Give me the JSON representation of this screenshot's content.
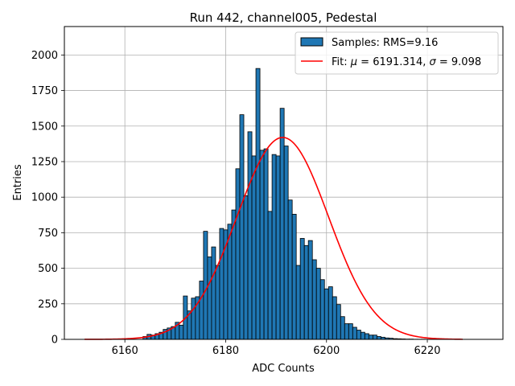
{
  "chart_data": {
    "type": "bar",
    "title": "Run 442, channel005, Pedestal",
    "xlabel": "ADC Counts",
    "ylabel": "Entries",
    "xlim": [
      6148,
      6235
    ],
    "ylim": [
      0,
      2200
    ],
    "xticks": [
      6160,
      6180,
      6200,
      6220
    ],
    "yticks": [
      0,
      250,
      500,
      750,
      1000,
      1250,
      1500,
      1750,
      2000
    ],
    "grid": true,
    "legend_position": "top-right",
    "histogram": {
      "name": "Samples: RMS=9.16",
      "bin_width": 0.8,
      "bin_left_edges": [
        6163.6,
        6164.4,
        6165.2,
        6166.0,
        6166.8,
        6167.6,
        6168.4,
        6169.2,
        6170.0,
        6170.8,
        6171.6,
        6172.4,
        6173.2,
        6174.0,
        6174.8,
        6175.6,
        6176.4,
        6177.2,
        6178.0,
        6178.8,
        6179.6,
        6180.4,
        6181.2,
        6182.0,
        6182.8,
        6183.6,
        6184.4,
        6185.2,
        6186.0,
        6186.8,
        6187.6,
        6188.4,
        6189.2,
        6190.0,
        6190.8,
        6191.6,
        6192.4,
        6193.2,
        6194.0,
        6194.8,
        6195.6,
        6196.4,
        6197.2,
        6198.0,
        6198.8,
        6199.6,
        6200.4,
        6201.2,
        6202.0,
        6202.8,
        6203.6,
        6204.4,
        6205.2,
        6206.0,
        6206.8,
        6207.6,
        6208.4,
        6209.2,
        6210.0,
        6210.8,
        6211.6,
        6212.4,
        6213.2,
        6214.0,
        6214.8,
        6215.6,
        6216.4,
        6217.2,
        6218.0,
        6218.8
      ],
      "counts": [
        20,
        35,
        30,
        40,
        50,
        70,
        80,
        90,
        120,
        100,
        305,
        200,
        290,
        300,
        410,
        760,
        580,
        650,
        520,
        780,
        770,
        810,
        910,
        1200,
        1580,
        1010,
        1460,
        1290,
        1905,
        1330,
        1340,
        900,
        1300,
        1290,
        1625,
        1360,
        980,
        880,
        520,
        710,
        660,
        695,
        560,
        500,
        420,
        355,
        370,
        300,
        245,
        160,
        110,
        110,
        85,
        65,
        50,
        40,
        30,
        30,
        20,
        15,
        10,
        8,
        5,
        4,
        3,
        2,
        2,
        1,
        1,
        1
      ],
      "color": "#1f77b4",
      "edge_color": "#000000"
    },
    "fit": {
      "name": "Fit: $\\mu$ = 6191.314, $\\sigma$ = 9.098",
      "mu": 6191.314,
      "sigma": 9.098,
      "peak": 1420,
      "x_range": [
        6152,
        6227
      ],
      "color": "#ff0000"
    }
  },
  "legend": {
    "hist_prefix": "Samples: RMS=9.16",
    "fit_prefix": "Fit: ",
    "mu_symbol": "μ",
    "eq1": " = 6191.314, ",
    "sigma_symbol": "σ",
    "eq2": " = 9.098"
  }
}
